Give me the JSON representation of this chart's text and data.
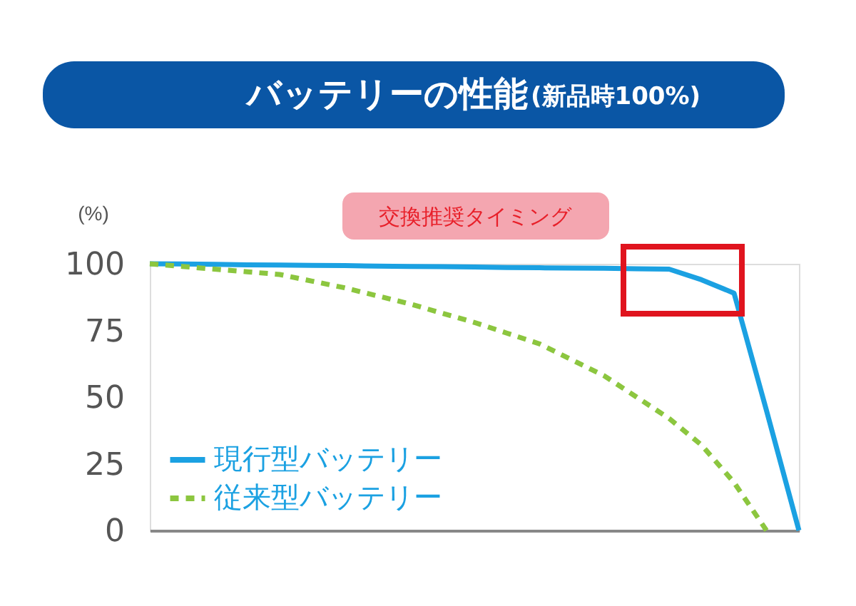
{
  "chart_data": {
    "type": "line",
    "title": "バッテリーの性能",
    "subtitle": "(新品時100%)",
    "ylabel": "(%)",
    "annotations": [
      "交換推奨タイミング"
    ],
    "categories": [
      null,
      null,
      null,
      null,
      null,
      null,
      null,
      null,
      null,
      null,
      null,
      null,
      null,
      null,
      null,
      null,
      null,
      null,
      null,
      null,
      null
    ],
    "series": [
      {
        "name": "現行型バッテリー",
        "color": "#1ba1e2",
        "line_style": "solid",
        "values": [
          100,
          99.9,
          99.8,
          99.6,
          99.5,
          99.4,
          99.3,
          99.1,
          99,
          98.9,
          98.8,
          98.6,
          98.5,
          98.4,
          98.3,
          98.1,
          98,
          94,
          89,
          45,
          0
        ]
      },
      {
        "name": "従来型バッテリー",
        "color": "#8cc63f",
        "line_style": "dashed",
        "values": [
          100,
          99,
          98,
          97,
          96,
          93.5,
          91,
          88,
          85,
          81.5,
          78,
          74,
          70,
          64,
          58,
          50,
          42,
          32,
          18,
          0,
          null
        ]
      }
    ],
    "ylim": [
      0,
      100
    ],
    "yticks": [
      0,
      25,
      50,
      75,
      100
    ],
    "grid": false,
    "legend": "bottom left",
    "tick_labels": "y",
    "marker": "none"
  }
}
